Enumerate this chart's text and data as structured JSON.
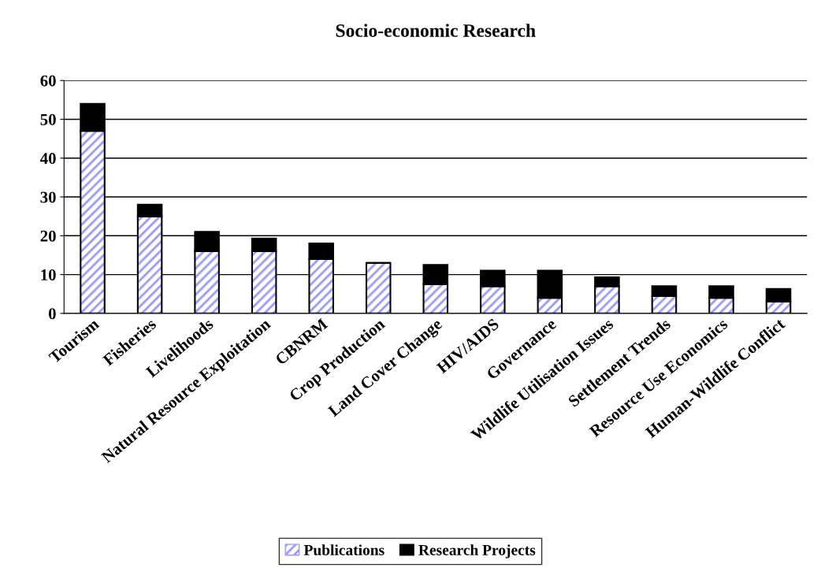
{
  "chart_data": {
    "type": "bar",
    "title": "Socio-economic Research",
    "stacked": true,
    "categories": [
      "Tourism",
      "Fisheries",
      "Livelihoods",
      "Natural Resource Exploitation",
      "CBNRM",
      "Crop Production",
      "Land Cover Change",
      "HIV/AIDS",
      "Governance",
      "Wildlife Utilisation Issues",
      "Settlement Trends",
      "Resource Use Economics",
      "Human-Wildlife Conflict"
    ],
    "series": [
      {
        "name": "Publications",
        "color": "#9999ff",
        "values": [
          47,
          25,
          16,
          16,
          14,
          13,
          7.5,
          7,
          4,
          7,
          4.5,
          4,
          3
        ]
      },
      {
        "name": "Research Projects",
        "color": "#000000",
        "values": [
          7,
          3,
          5,
          3.3,
          4,
          0,
          5,
          4,
          7,
          2.3,
          2.5,
          3,
          3.3
        ]
      }
    ],
    "ylim": [
      0,
      60
    ],
    "yticks": [
      0,
      10,
      20,
      30,
      40,
      50,
      60
    ],
    "grid": "y",
    "legend": "bottom"
  }
}
